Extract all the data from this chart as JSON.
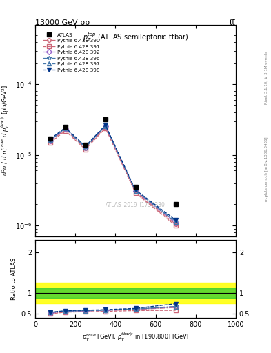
{
  "title_top": "13000 GeV pp",
  "title_right": "tt̅",
  "subplot_title": "$p_T^{top}$ (ATLAS semileptonic tt̅bar)",
  "watermark": "ATLAS_2019_I1750330",
  "right_label_top": "Rivet 3.1.10, ≥ 3.1M events",
  "right_label_bot": "mcplots.cern.ch [arXiv:1306.3436]",
  "xlabel": "$p_T^{thad}$ [GeV], $p_T^{tbar|t}$ in [190,800] [GeV]",
  "ylabel_main": "$d^2\\sigma$ / $d$ $p_T^{t,had}$ $d$ $p_T^{tbar|t}$ [pb/GeV$^2$]",
  "ylabel_ratio": "Ratio to ATLAS",
  "xlim": [
    0,
    1000
  ],
  "ylim_main": [
    7e-07,
    0.0007
  ],
  "ylim_ratio": [
    0.4,
    2.3
  ],
  "ratio_yticks": [
    0.5,
    1.0,
    2.0
  ],
  "x_data": [
    75,
    150,
    250,
    350,
    500,
    700
  ],
  "atlas_y": [
    1.7e-05,
    2.5e-05,
    1.4e-05,
    3.2e-05,
    3.5e-06,
    2e-06
  ],
  "series": [
    {
      "label": "Pythia 6.428 390",
      "color": "#cc6677",
      "linestyle": "-.",
      "marker": "o",
      "fillstyle": "none",
      "y": [
        1.55e-05,
        2.3e-05,
        1.25e-05,
        2.5e-05,
        3e-06,
        1.05e-06
      ],
      "ratio": [
        0.51,
        0.545,
        0.565,
        0.575,
        0.6,
        0.65
      ]
    },
    {
      "label": "Pythia 6.428 391",
      "color": "#cc6677",
      "linestyle": "--",
      "marker": "s",
      "fillstyle": "none",
      "y": [
        1.5e-05,
        2.2e-05,
        1.2e-05,
        2.4e-05,
        2.9e-06,
        1e-06
      ],
      "ratio": [
        0.495,
        0.535,
        0.545,
        0.555,
        0.575,
        0.58
      ]
    },
    {
      "label": "Pythia 6.428 392",
      "color": "#9966cc",
      "linestyle": "-.",
      "marker": "D",
      "fillstyle": "none",
      "y": [
        1.6e-05,
        2.35e-05,
        1.28e-05,
        2.55e-05,
        3.1e-06,
        1.1e-06
      ],
      "ratio": [
        0.52,
        0.555,
        0.568,
        0.578,
        0.608,
        0.66
      ]
    },
    {
      "label": "Pythia 6.428 396",
      "color": "#4477aa",
      "linestyle": "-.",
      "marker": "*",
      "fillstyle": "none",
      "y": [
        1.65e-05,
        2.4e-05,
        1.3e-05,
        2.6e-05,
        3.15e-06,
        1.15e-06
      ],
      "ratio": [
        0.53,
        0.565,
        0.578,
        0.588,
        0.618,
        0.675
      ]
    },
    {
      "label": "Pythia 6.428 397",
      "color": "#4477aa",
      "linestyle": "--",
      "marker": "^",
      "fillstyle": "none",
      "y": [
        1.62e-05,
        2.38e-05,
        1.27e-05,
        2.58e-05,
        3.12e-06,
        1.12e-06
      ],
      "ratio": [
        0.525,
        0.558,
        0.572,
        0.582,
        0.612,
        0.668
      ]
    },
    {
      "label": "Pythia 6.428 398",
      "color": "#003388",
      "linestyle": "--",
      "marker": "v",
      "fillstyle": "full",
      "y": [
        1.68e-05,
        2.45e-05,
        1.33e-05,
        2.65e-05,
        3.2e-06,
        1.2e-06
      ],
      "ratio": [
        0.535,
        0.572,
        0.585,
        0.598,
        0.628,
        0.74
      ]
    }
  ],
  "green_band_lo": 0.88,
  "green_band_hi": 1.12,
  "yellow_band_lo": 0.75,
  "yellow_band_hi": 1.25
}
